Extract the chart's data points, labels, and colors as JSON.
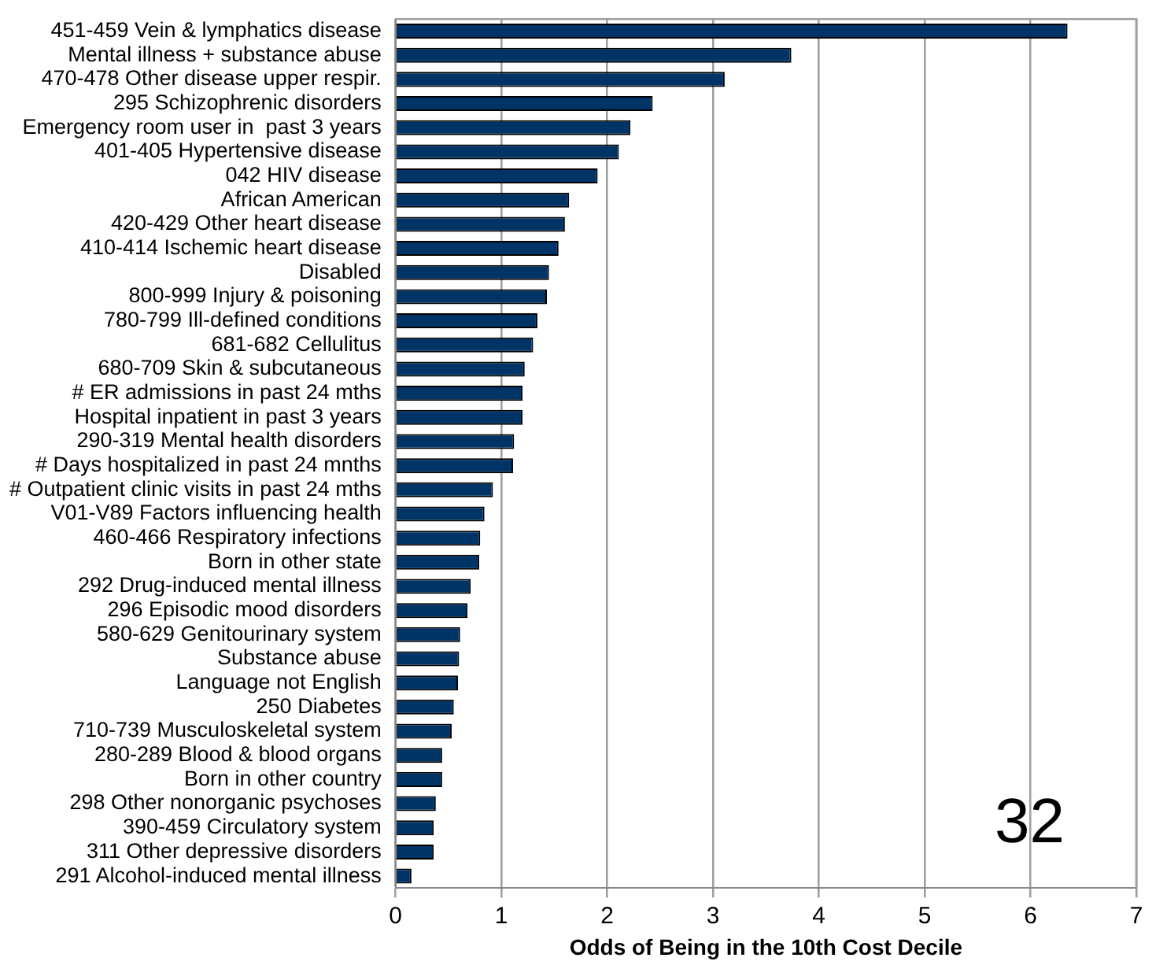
{
  "chart_data": {
    "type": "bar",
    "orientation": "horizontal",
    "xlabel": "Odds of Being in the 10th Cost Decile",
    "categories": [
      "451-459 Vein & lymphatics disease",
      "Mental illness + substance abuse",
      "470-478 Other disease upper respir.",
      "295 Schizophrenic disorders",
      "Emergency room user in  past 3 years",
      "401-405 Hypertensive disease",
      "042 HIV disease",
      "African American",
      "420-429 Other heart disease",
      "410-414 Ischemic heart disease",
      "Disabled",
      "800-999 Injury & poisoning",
      "780-799 Ill-defined conditions",
      "681-682 Cellulitus",
      "680-709 Skin & subcutaneous",
      "# ER admissions in past 24 mths",
      "Hospital inpatient in past 3 years",
      "290-319 Mental health disorders",
      "# Days hospitalized in past 24 mnths",
      "# Outpatient clinic visits in past 24 mths",
      "V01-V89 Factors influencing health",
      "460-466 Respiratory infections",
      "Born in other state",
      "292 Drug-induced mental illness",
      "296 Episodic mood disorders",
      "580-629 Genitourinary system",
      "Substance abuse",
      "Language not English",
      "250 Diabetes",
      "710-739 Musculoskeletal system",
      "280-289 Blood & blood organs",
      "Born in other country",
      "298 Other nonorganic psychoses",
      "390-459 Circulatory system",
      "311 Other depressive disorders",
      "291 Alcohol-induced mental illness"
    ],
    "values": [
      6.35,
      3.74,
      3.11,
      2.43,
      2.22,
      2.11,
      1.91,
      1.64,
      1.6,
      1.54,
      1.45,
      1.43,
      1.34,
      1.3,
      1.22,
      1.2,
      1.2,
      1.12,
      1.11,
      0.92,
      0.84,
      0.8,
      0.79,
      0.71,
      0.68,
      0.61,
      0.6,
      0.59,
      0.55,
      0.53,
      0.44,
      0.44,
      0.38,
      0.36,
      0.36,
      0.15
    ],
    "color": "#003366",
    "xlim": [
      0,
      7
    ],
    "xticks": [
      0,
      1,
      2,
      3,
      4,
      5,
      6,
      7
    ],
    "grid": "x",
    "legend": false,
    "annotations": [
      "32"
    ]
  }
}
